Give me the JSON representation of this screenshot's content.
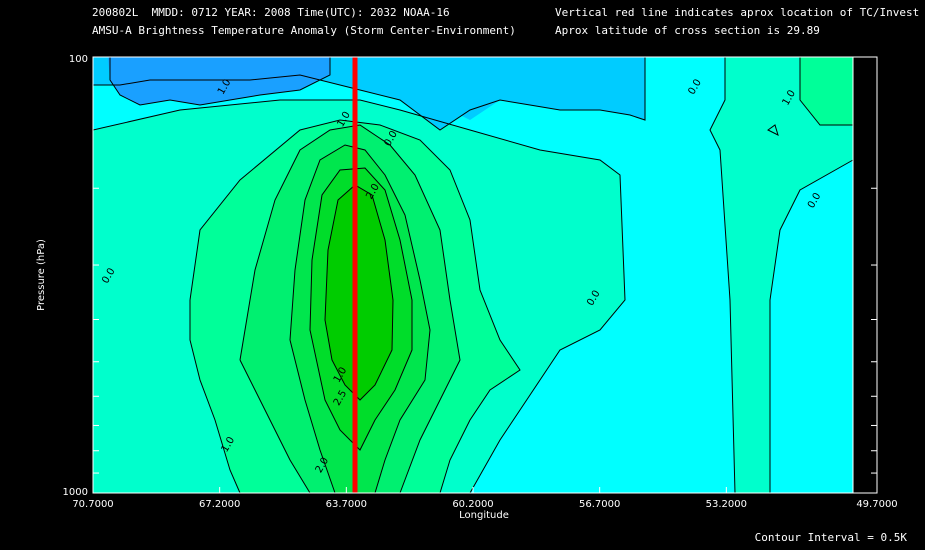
{
  "header": {
    "line1_left": "200802L  MMDD: 0712 YEAR: 2008 Time(UTC): 2032 NOAA-16",
    "line2_left": "AMSU-A Brightness Temperature Anomaly (Storm Center-Environment)",
    "line1_right": "Vertical red line indicates aprox location of TC/Invest",
    "line2_right": "Aprox latitude of cross section is 29.89"
  },
  "footer": {
    "contour_interval": "Contour Interval = 0.5K"
  },
  "chart_data": {
    "type": "heatmap",
    "title": "AMSU-A Brightness Temperature Anomaly (Storm Center-Environment)",
    "xlabel": "Longitude",
    "ylabel": "Pressure (hPa)",
    "x_ticks": [
      "70.7000",
      "67.2000",
      "63.7000",
      "60.2000",
      "56.7000",
      "53.2000",
      "49.7000"
    ],
    "x_range": [
      70.7,
      49.7
    ],
    "y_ticks": [
      "100",
      "1000"
    ],
    "y_range": [
      1000,
      100
    ],
    "y_scale": "log",
    "tc_longitude": 63.7,
    "contour_interval": 0.5,
    "contour_labels": [
      {
        "text": "1.0",
        "lon": 67.0,
        "p": 118
      },
      {
        "text": "1.0",
        "lon": 63.7,
        "p": 140
      },
      {
        "text": "0.0",
        "lon": 62.4,
        "p": 155
      },
      {
        "text": "2.0",
        "lon": 62.9,
        "p": 205
      },
      {
        "text": "0.0",
        "lon": 70.2,
        "p": 320
      },
      {
        "text": "0.0",
        "lon": 56.8,
        "p": 360
      },
      {
        "text": "1.0",
        "lon": 63.8,
        "p": 540
      },
      {
        "text": "2.5",
        "lon": 63.8,
        "p": 610
      },
      {
        "text": "1.0",
        "lon": 66.9,
        "p": 780
      },
      {
        "text": "2.0",
        "lon": 64.3,
        "p": 870
      },
      {
        "text": "0.0",
        "lon": 54.0,
        "p": 118
      },
      {
        "text": "1.0",
        "lon": 51.4,
        "p": 125
      },
      {
        "text": "0.0",
        "lon": 50.7,
        "p": 215
      }
    ],
    "colors": {
      "neg_1_0": "#1aa0ff",
      "neg_0_5": "#00ccff",
      "zero": "#00ffff",
      "pos_0_0": "#00ffcc",
      "pos_0_5": "#00ff99",
      "pos_1_0": "#00f070",
      "pos_1_5": "#00e64d",
      "pos_2_0": "#00dd2a",
      "pos_2_5": "#00cc00",
      "tc_line": "#ff0000",
      "contour": "#000000"
    }
  }
}
